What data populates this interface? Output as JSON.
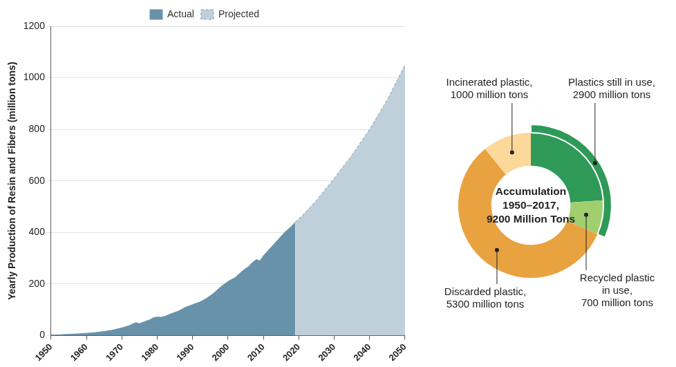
{
  "chart_data": [
    {
      "type": "area",
      "y_label": "Yearly Production of Resin and Fibers (million tons)",
      "x": [
        1950,
        1952,
        1955,
        1958,
        1960,
        1962,
        1965,
        1967,
        1970,
        1972,
        1973,
        1974,
        1975,
        1976,
        1978,
        1979,
        1980,
        1981,
        1982,
        1984,
        1986,
        1988,
        1990,
        1992,
        1994,
        1996,
        1998,
        2000,
        2002,
        2004,
        2006,
        2007,
        2008,
        2009,
        2010,
        2012,
        2014,
        2016,
        2018,
        2019,
        2022,
        2025,
        2030,
        2035,
        2040,
        2045,
        2050
      ],
      "series": [
        {
          "name": "Actual",
          "color": "#6892aa",
          "line_style": "solid",
          "values": [
            2,
            3,
            5,
            7,
            9,
            11,
            16,
            20,
            30,
            38,
            45,
            50,
            46,
            52,
            62,
            70,
            72,
            71,
            74,
            85,
            95,
            110,
            120,
            130,
            145,
            165,
            190,
            210,
            225,
            250,
            270,
            285,
            295,
            290,
            310,
            340,
            370,
            400,
            425,
            440,
            null,
            null,
            null,
            null,
            null,
            null,
            null
          ]
        },
        {
          "name": "Projected",
          "color": "#bfd0db",
          "line_style": "dashed",
          "values": [
            null,
            null,
            null,
            null,
            null,
            null,
            null,
            null,
            null,
            null,
            null,
            null,
            null,
            null,
            null,
            null,
            null,
            null,
            null,
            null,
            null,
            null,
            null,
            null,
            null,
            null,
            null,
            null,
            null,
            null,
            null,
            null,
            null,
            null,
            null,
            null,
            null,
            null,
            null,
            440,
            480,
            525,
            610,
            700,
            800,
            915,
            1050
          ]
        }
      ],
      "xlim": [
        1950,
        2050
      ],
      "xticks": [
        1950,
        1960,
        1970,
        1980,
        1990,
        2000,
        2010,
        2020,
        2030,
        2040,
        2050
      ],
      "ylim": [
        0,
        1200
      ],
      "yticks": [
        0,
        200,
        400,
        600,
        800,
        1000,
        1200
      ],
      "grid": true,
      "legend": "top"
    },
    {
      "type": "doughnut",
      "title": [
        "Accumulation",
        "1950–2017,",
        "9200 Million Tons"
      ],
      "values": [
        2200,
        700,
        5300,
        1000
      ],
      "colors": [
        "#2f9a58",
        "#a1cf6f",
        "#e8a240",
        "#fcd89b"
      ],
      "data_labels": true,
      "value_labels": [
        null,
        [
          "Recycled plastic",
          "in use,",
          "700 million tons"
        ],
        [
          "Discarded plastic,",
          "5300 million tons"
        ],
        [
          "Incinerated plastic,",
          "1000 million tons"
        ]
      ],
      "outer_arc": {
        "value": 2900,
        "color": "#2f9a58",
        "value_label": [
          "Plastics still in use,",
          "2900 million tons"
        ]
      }
    }
  ]
}
